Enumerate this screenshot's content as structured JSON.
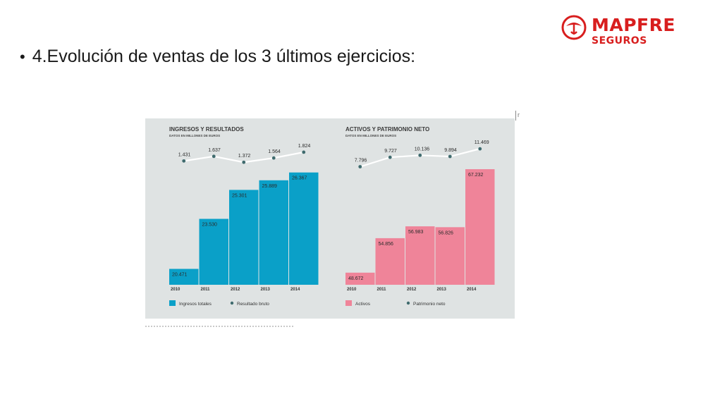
{
  "slide": {
    "bullet": "•",
    "title": "4.Evolución de ventas de los 3 últimos ejercicios:"
  },
  "logo": {
    "name": "MAPFRE",
    "subtitle": "SEGUROS",
    "color": "#d81e1e"
  },
  "chart_data": [
    {
      "type": "bar",
      "title": "INGRESOS Y RESULTADOS",
      "subtitle": "DATOS EN MILLONES DE EUROS",
      "categories": [
        "2010",
        "2011",
        "2012",
        "2013",
        "2014"
      ],
      "series": [
        {
          "name": "Ingresos totales",
          "kind": "bar",
          "color": "#0aa0c8",
          "values": [
            20471,
            23530,
            25301,
            25889,
            26367
          ],
          "labels": [
            "20.471",
            "23.530",
            "25.301",
            "25.889",
            "26.367"
          ]
        },
        {
          "name": "Resultado bruto",
          "kind": "line",
          "color": "#3f6b6e",
          "values": [
            1431,
            1637,
            1372,
            1564,
            1824
          ],
          "labels": [
            "1.431",
            "1.637",
            "1.372",
            "1.564",
            "1.824"
          ]
        }
      ],
      "ylim": [
        19500,
        27000
      ],
      "line_ylim": [
        1000,
        2200
      ],
      "legend": "bottom-left",
      "grid": false
    },
    {
      "type": "bar",
      "title": "ACTIVOS Y PATRIMONIO NETO",
      "subtitle": "DATOS EN MILLONES DE EUROS",
      "categories": [
        "2010",
        "2011",
        "2012",
        "2013",
        "2014"
      ],
      "series": [
        {
          "name": "Activos",
          "kind": "bar",
          "color": "#ef8499",
          "values": [
            48672,
            54856,
            56983,
            56826,
            67232
          ],
          "labels": [
            "48.672",
            "54.856",
            "56.983",
            "56.826",
            "67.232"
          ]
        },
        {
          "name": "Patrimonio neto",
          "kind": "line",
          "color": "#3f6b6e",
          "values": [
            7796,
            9727,
            10136,
            9894,
            11469
          ],
          "labels": [
            "7.796",
            "9.727",
            "10.136",
            "9.894",
            "11.469"
          ]
        }
      ],
      "ylim": [
        46500,
        68500
      ],
      "line_ylim": [
        7000,
        12500
      ],
      "legend": "bottom-left",
      "grid": false
    }
  ]
}
